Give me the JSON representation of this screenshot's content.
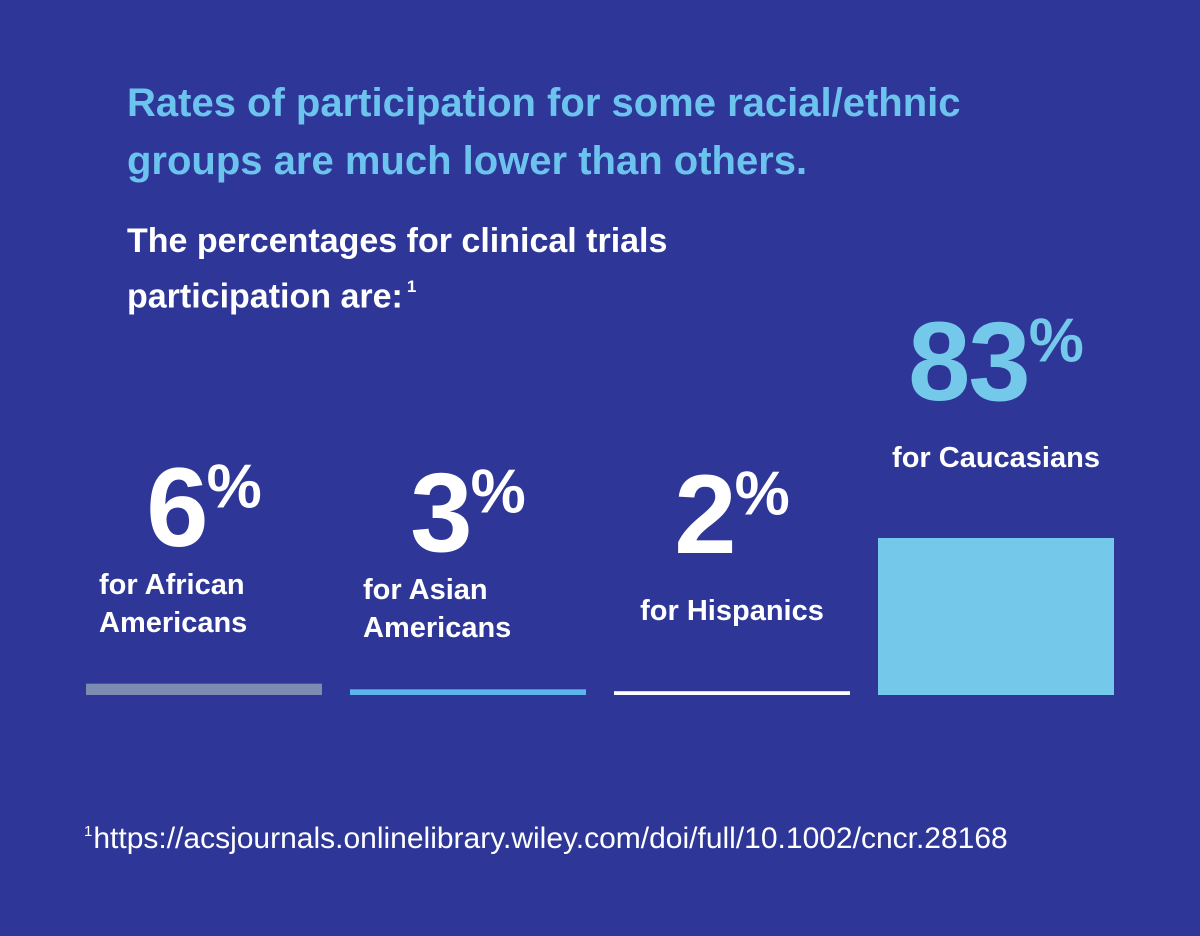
{
  "chart_data": {
    "type": "bar",
    "title": "Rates of participation for some racial/ethnic groups are much lower than others.",
    "subtitle": "The percentages for clinical trials participation are:",
    "subtitle_marker": "1",
    "categories": [
      "for African Americans",
      "for Asian Americans",
      "for Hispanics",
      "for Caucasians"
    ],
    "values": [
      6,
      3,
      2,
      83
    ],
    "value_labels": [
      "6%",
      "3%",
      "2%",
      "83%"
    ],
    "colors": [
      "#7c8bb0",
      "#5cb6ec",
      "#ffffff",
      "#74c8ea"
    ],
    "value_label_colors": [
      "#ffffff",
      "#ffffff",
      "#ffffff",
      "#74c8ea"
    ],
    "ylim": [
      0,
      83
    ],
    "footnote_marker": "1",
    "footnote": "https://acsjournals.onlinelibrary.wiley.com/doi/full/10.1002/cncr.28168"
  }
}
